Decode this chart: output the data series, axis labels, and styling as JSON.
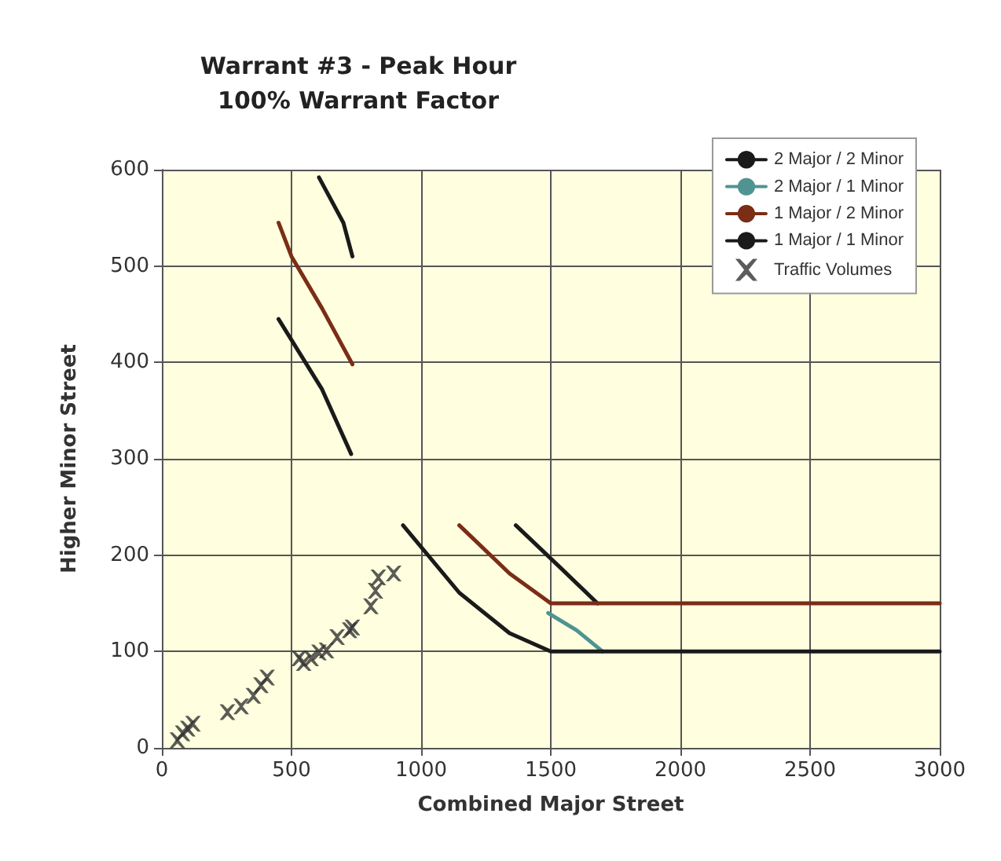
{
  "chart_data": {
    "type": "line",
    "title": "Warrant #3 - Peak Hour\n100% Warrant Factor",
    "xlabel": "Combined Major Street",
    "ylabel": "Higher Minor Street",
    "xlim": [
      0,
      3000
    ],
    "xticks": [
      0,
      500,
      1000,
      1500,
      2000,
      2500,
      3000
    ],
    "ylim": [
      0,
      600
    ],
    "yticks": [
      0,
      100,
      200,
      300,
      400,
      500,
      600
    ],
    "grid": true,
    "legend": "top right",
    "line_style": "solid",
    "marker": "none",
    "series": [
      {
        "name": "2 Major / 2 Minor",
        "color": "#1a1a1a",
        "x": [
          606,
          700,
          735,
          1000,
          1365,
          1541,
          1680
        ],
        "values": [
          592,
          545,
          510,
          null,
          231,
          186,
          150
        ]
      },
      {
        "name": "2 Major / 1 Minor",
        "color": "#4f9490",
        "x": [
          1490,
          1600,
          1700
        ],
        "values": [
          140,
          122,
          100
        ]
      },
      {
        "name": "1 Major / 2 Minor",
        "color": "#7b2d16",
        "x": [
          450,
          500,
          618,
          735,
          1000,
          1147,
          1341,
          1500,
          3000
        ],
        "values": [
          545,
          510,
          456,
          398,
          null,
          231,
          181,
          150,
          150
        ]
      },
      {
        "name": "1 Major / 1 Minor",
        "color": "#1a1a1a",
        "x": [
          450,
          618,
          730,
          850,
          930,
          1147,
          1341,
          1500,
          3000
        ],
        "values": [
          445,
          372,
          305,
          null,
          231,
          161,
          119,
          100,
          100
        ]
      },
      {
        "name": "Traffic Volumes",
        "type": "scatter",
        "marker": "cross",
        "color": "#333333",
        "x": [
          60,
          80,
          100,
          120,
          253,
          306,
          353,
          382,
          406,
          529,
          547,
          576,
          606,
          635,
          676,
          724,
          735,
          806,
          824,
          835,
          894
        ],
        "values": [
          8,
          15,
          20,
          25,
          37,
          43,
          54,
          65,
          73,
          93,
          88,
          93,
          99,
          101,
          115,
          122,
          125,
          147,
          163,
          177,
          181
        ]
      }
    ]
  }
}
